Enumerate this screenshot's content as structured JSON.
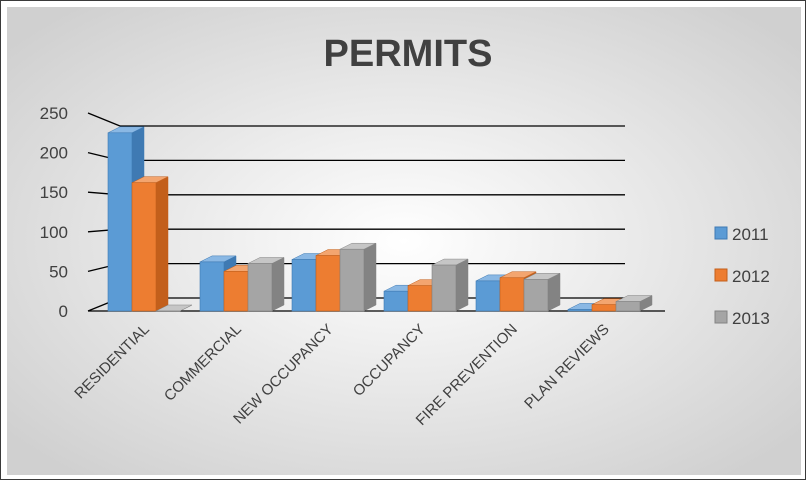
{
  "chart_data": {
    "type": "bar",
    "title": "PERMITS",
    "categories": [
      "RESIDENTIAL",
      "COMMERCIAL",
      "NEW OCCUPANCY",
      "OCCUPANCY",
      "FIRE PREVENTION",
      "PLAN REVIEWS"
    ],
    "series": [
      {
        "name": "2011",
        "values": [
          225,
          62,
          65,
          25,
          38,
          2
        ]
      },
      {
        "name": "2012",
        "values": [
          162,
          50,
          70,
          32,
          42,
          8
        ]
      },
      {
        "name": "2013",
        "values": [
          0,
          60,
          78,
          58,
          40,
          12
        ]
      }
    ],
    "yticks": [
      "0",
      "50",
      "100",
      "150",
      "200",
      "250"
    ],
    "ylim": [
      0,
      250
    ],
    "grid": true,
    "legend_position": "right",
    "colors": {
      "2011": {
        "front": "#5b9bd5",
        "top": "#8ab8e4",
        "side": "#3f7ab3"
      },
      "2012": {
        "front": "#ed7d31",
        "top": "#f3a56f",
        "side": "#c35f1b"
      },
      "2013": {
        "front": "#a5a5a5",
        "top": "#c6c6c6",
        "side": "#838383"
      }
    },
    "background": {
      "center": "#ffffff",
      "edge": "#d0d0d0"
    }
  }
}
